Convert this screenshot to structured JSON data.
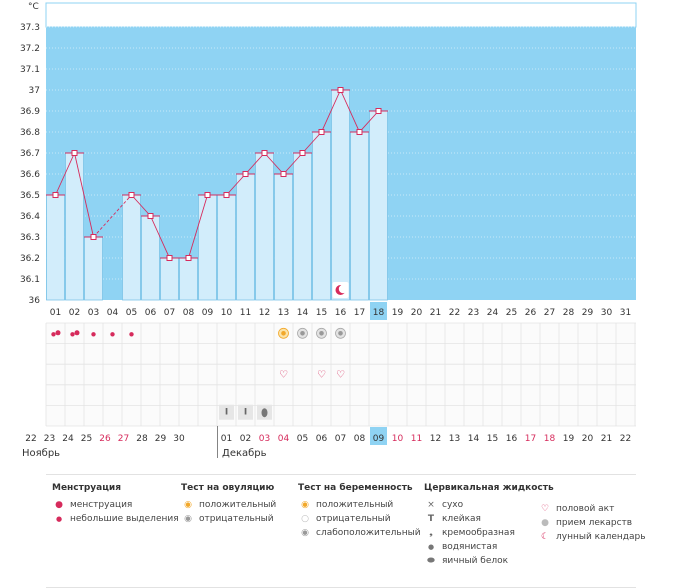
{
  "chart_data": {
    "type": "bar",
    "unit_label": "°C",
    "ylim": [
      36,
      37.3
    ],
    "yticks": [
      "37.3",
      "37.2",
      "37.1",
      "37",
      "36.9",
      "36.8",
      "36.7",
      "36.6",
      "36.5",
      "36.4",
      "36.3",
      "36.2",
      "36.1",
      "36"
    ],
    "cycle_days": [
      "01",
      "02",
      "03",
      "04",
      "05",
      "06",
      "07",
      "08",
      "09",
      "10",
      "11",
      "12",
      "13",
      "14",
      "15",
      "16",
      "17",
      "18",
      "19",
      "20",
      "21",
      "22",
      "23",
      "24",
      "25",
      "26",
      "27",
      "28",
      "29",
      "30",
      "31"
    ],
    "temps": [
      36.5,
      36.7,
      36.3,
      null,
      36.5,
      36.4,
      36.2,
      36.2,
      36.5,
      36.5,
      36.6,
      36.7,
      36.6,
      36.7,
      36.8,
      37.0,
      36.8,
      36.9
    ],
    "today_index": 17,
    "dates": [
      "22",
      "23",
      "24",
      "25",
      "26",
      "27",
      "28",
      "29",
      "30",
      "01",
      "02",
      "03",
      "04",
      "05",
      "06",
      "07",
      "08",
      "09",
      "10",
      "11",
      "12",
      "13",
      "14",
      "15",
      "16",
      "17",
      "18",
      "19",
      "20",
      "21",
      "22"
    ],
    "date_colors": [
      "#333",
      "#333",
      "#333",
      "#333",
      "#d62b5c",
      "#d62b5c",
      "#333",
      "#333",
      "#333",
      "#333",
      "#333",
      "#d62b5c",
      "#d62b5c",
      "#333",
      "#333",
      "#333",
      "#333",
      "#333",
      "#d62b5c",
      "#d62b5c",
      "#333",
      "#333",
      "#333",
      "#333",
      "#333",
      "#d62b5c",
      "#d62b5c",
      "#333",
      "#333",
      "#333",
      "#333"
    ],
    "moon_index": 15
  },
  "rows": {
    "menstruation": {
      "0": "heavy",
      "1": "heavy",
      "2": "light",
      "3": "light",
      "4": "light"
    },
    "ovulation": {
      "12": "positive",
      "13": "negative",
      "14": "negative",
      "15": "negative"
    },
    "sex": [
      12,
      14,
      15
    ],
    "fluid": {
      "9": "sticky",
      "10": "sticky",
      "11": "watery"
    }
  },
  "months": {
    "prev": "Ноябрь",
    "next": "Декабрь"
  },
  "legend": {
    "menstruation": {
      "title": "Менструация",
      "items": [
        "менструация",
        "небольшие выделения"
      ]
    },
    "ovulation": {
      "title": "Тест на овуляцию",
      "items": [
        "положительный",
        "отрицательный"
      ]
    },
    "pregnancy": {
      "title": "Тест на беременность",
      "items": [
        "положительный",
        "отрицательный",
        "слабоположительный"
      ]
    },
    "fluid": {
      "title": "Цервикальная жидкость",
      "items": [
        "сухо",
        "клейкая",
        "кремообразная",
        "водянистая",
        "яичный белок"
      ]
    },
    "other": {
      "items": [
        "половой акт",
        "прием лекарств",
        "лунный календарь"
      ]
    }
  },
  "colors": {
    "bg_blue": "#8fd3f3",
    "bar_fill": "#d2edfb",
    "bar_stroke": "#7cc3e8",
    "line": "#d62b5c",
    "accent_pink": "#d62b5c",
    "today_bg": "#8fd3f3"
  }
}
